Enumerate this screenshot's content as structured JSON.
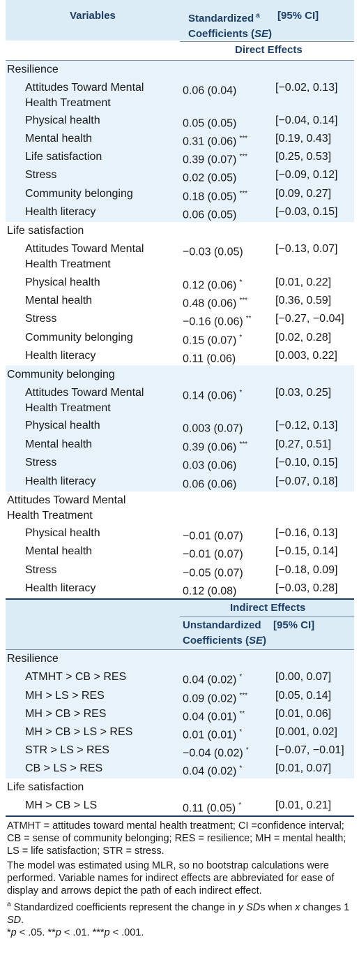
{
  "header": {
    "col1": "Variables",
    "col2_line1": "Standardized",
    "col2_sup": "a",
    "col2_line2": "Coefficients (",
    "col2_se": "SE",
    "col2_close": ")",
    "col3": "[95% CI]"
  },
  "direct_label": "Direct Effects",
  "direct_sections": [
    {
      "title": "Resilience",
      "rows": [
        {
          "var": "Attitudes Toward Mental Health Treatment",
          "coef": "0.06 (0.04)",
          "sig": "",
          "ci": "[−0.02, 0.13]"
        },
        {
          "var": "Physical health",
          "coef": "0.05 (0.05)",
          "sig": "",
          "ci": "[−0.04, 0.14]"
        },
        {
          "var": "Mental health",
          "coef": "0.31 (0.06)",
          "sig": "***",
          "ci": "[0.19, 0.43]"
        },
        {
          "var": "Life satisfaction",
          "coef": "0.39 (0.07)",
          "sig": "***",
          "ci": "[0.25, 0.53]"
        },
        {
          "var": "Stress",
          "coef": "0.02 (0.05)",
          "sig": "",
          "ci": "[−0.09, 0.12]"
        },
        {
          "var": "Community belonging",
          "coef": "0.18 (0.05)",
          "sig": "***",
          "ci": "[0.09, 0.27]"
        },
        {
          "var": "Health literacy",
          "coef": "0.06 (0.05)",
          "sig": "",
          "ci": "[−0.03, 0.15]"
        }
      ]
    },
    {
      "title": "Life satisfaction",
      "rows": [
        {
          "var": "Attitudes Toward Mental Health Treatment",
          "coef": "−0.03 (0.05)",
          "sig": "",
          "ci": "[−0.13, 0.07]"
        },
        {
          "var": "Physical health",
          "coef": "0.12 (0.06)",
          "sig": "*",
          "ci": "[0.01, 0.22]"
        },
        {
          "var": "Mental health",
          "coef": "0.48 (0.06)",
          "sig": "***",
          "ci": "[0.36, 0.59]"
        },
        {
          "var": "Stress",
          "coef": "−0.16 (0.06)",
          "sig": "**",
          "ci": "[−0.27, −0.04]"
        },
        {
          "var": "Community belonging",
          "coef": "0.15 (0.07)",
          "sig": "*",
          "ci": "[0.02, 0.28]"
        },
        {
          "var": "Health literacy",
          "coef": "0.11 (0.06)",
          "sig": "",
          "ci": "[0.003, 0.22]"
        }
      ]
    },
    {
      "title": "Community belonging",
      "rows": [
        {
          "var": "Attitudes Toward Mental Health Treatment",
          "coef": "0.14 (0.06)",
          "sig": "*",
          "ci": "[0.03, 0.25]"
        },
        {
          "var": "Physical health",
          "coef": "0.003 (0.07)",
          "sig": "",
          "ci": "[−0.12, 0.13]"
        },
        {
          "var": "Mental health",
          "coef": "0.39 (0.06)",
          "sig": "***",
          "ci": "[0.27, 0.51]"
        },
        {
          "var": "Stress",
          "coef": "0.03 (0.06)",
          "sig": "",
          "ci": "[−0.10, 0.15]"
        },
        {
          "var": "Health literacy",
          "coef": "0.06 (0.06)",
          "sig": "",
          "ci": "[−0.07, 0.18]"
        }
      ]
    },
    {
      "title": "Attitudes Toward Mental Health Treatment",
      "rows": [
        {
          "var": "Physical health",
          "coef": "−0.01 (0.07)",
          "sig": "",
          "ci": "[−0.16, 0.13]"
        },
        {
          "var": "Mental health",
          "coef": "−0.01 (0.07)",
          "sig": "",
          "ci": "[−0.15, 0.14]"
        },
        {
          "var": "Stress",
          "coef": "−0.05 (0.07)",
          "sig": "",
          "ci": "[−0.18, 0.09]"
        },
        {
          "var": "Health literacy",
          "coef": "0.12 (0.08)",
          "sig": "",
          "ci": "[−0.03, 0.28]"
        }
      ]
    }
  ],
  "indirect_label": "Indirect Effects",
  "indirect_header": {
    "col2_line1": "Unstandardized",
    "col2_line2": "Coefficients (",
    "col2_se": "SE",
    "col2_close": ")",
    "col3": "[95% CI]"
  },
  "indirect_sections": [
    {
      "title": "Resilience",
      "rows": [
        {
          "var": "ATMHT > CB > RES",
          "coef": "0.04 (0.02)",
          "sig": "*",
          "ci": "[0.00, 0.07]"
        },
        {
          "var": "MH > LS > RES",
          "coef": "0.09 (0.02)",
          "sig": "***",
          "ci": "[0.05, 0.14]"
        },
        {
          "var": "MH > CB > RES",
          "coef": "0.04 (0.01)",
          "sig": "**",
          "ci": "[0.01, 0.06]"
        },
        {
          "var": "MH > CB > LS > RES",
          "coef": "0.01 (0.01)",
          "sig": "*",
          "ci": "[0.001, 0.02]"
        },
        {
          "var": "STR > LS > RES",
          "coef": "−0.04 (0.02)",
          "sig": "*",
          "ci": "[−0.07, −0.01]"
        },
        {
          "var": "CB > LS > RES",
          "coef": "0.04 (0.02)",
          "sig": "*",
          "ci": "[0.01, 0.07]"
        }
      ]
    },
    {
      "title": "Life satisfaction",
      "rows": [
        {
          "var": "MH > CB > LS",
          "coef": "0.11 (0.05)",
          "sig": "*",
          "ci": "[0.01, 0.21]"
        }
      ]
    }
  ],
  "footnotes": {
    "abbrev": "ATMHT = attitudes toward mental health treatment; CI =confidence interval; CB = sense of community belonging; RES = resilience; MH = mental health; LS = life satisfaction; STR = stress.",
    "model": "The model was estimated using MLR, so no bootstrap calculations were performed. Variable names for indirect effects are abbreviated for ease of display and arrows depict the path of each indirect effect.",
    "note_a_sup": "a",
    "note_a_1": " Standardized coefficients represent the change in ",
    "note_a_y": "y SD",
    "note_a_2": "s when ",
    "note_a_x": "x",
    "note_a_3": " changes 1 ",
    "note_a_sd": "SD",
    "note_a_4": ".",
    "p_star1": "*",
    "p_p1": "p",
    "p_t1": " < .05. **",
    "p_p2": "p",
    "p_t2": " < .01. ***",
    "p_p3": "p",
    "p_t3": " < .001."
  }
}
